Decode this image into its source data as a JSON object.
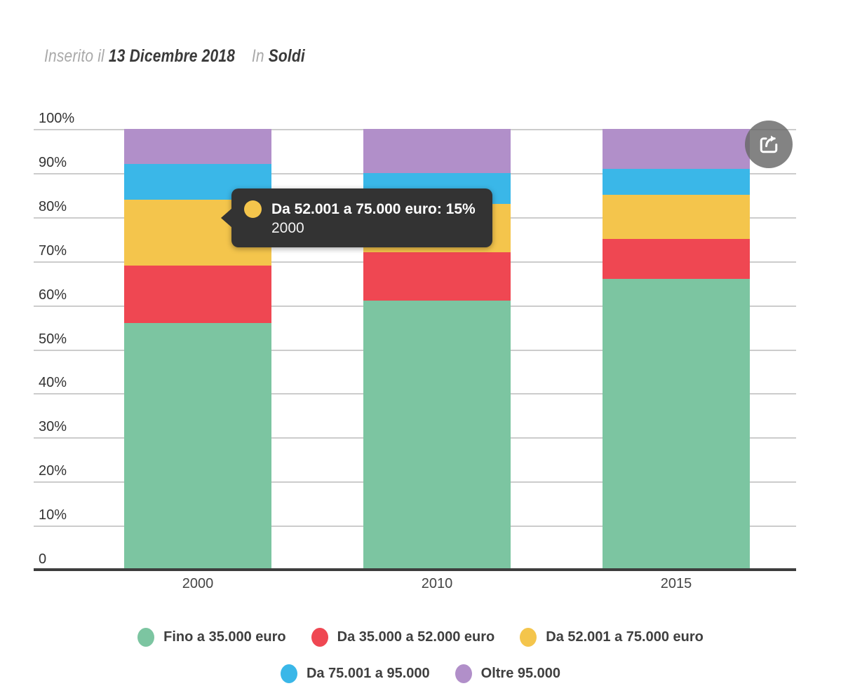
{
  "header": {
    "prefix": "Inserito il",
    "date": "13 Dicembre 2018",
    "in_label": "In",
    "category": "Soldi"
  },
  "chart_data": {
    "type": "bar",
    "stacked": true,
    "percent_stacked": true,
    "title": "",
    "xlabel": "",
    "ylabel": "",
    "categories": [
      "2000",
      "2010",
      "2015"
    ],
    "series": [
      {
        "name": "Fino a 35.000 euro",
        "color": "#7cc5a1",
        "values": [
          56,
          61,
          66
        ]
      },
      {
        "name": "Da 35.000 a 52.000 euro",
        "color": "#ef4752",
        "values": [
          13,
          11,
          9
        ]
      },
      {
        "name": "Da 52.001 a 75.000 euro",
        "color": "#f4c54c",
        "values": [
          15,
          11,
          10
        ]
      },
      {
        "name": "Da 75.001 a 95.000",
        "color": "#3ab7e8",
        "values": [
          8,
          7,
          6
        ]
      },
      {
        "name": "Oltre 95.000",
        "color": "#b18fc9",
        "values": [
          8,
          10,
          9
        ]
      }
    ],
    "ylim": [
      0,
      100
    ],
    "yticks": [
      "100%",
      "90%",
      "80%",
      "70%",
      "60%",
      "50%",
      "40%",
      "30%",
      "20%",
      "10%",
      "0"
    ],
    "grid": true,
    "legend_position": "bottom",
    "legend_rows": [
      [
        0,
        1,
        2
      ],
      [
        3,
        4
      ]
    ]
  },
  "tooltip": {
    "title": "Da 52.001 a 75.000 euro: 15%",
    "subtitle": "2000",
    "dot_color": "#f4c54c"
  },
  "colors": {
    "gridline": "#cccccc",
    "axis": "#3d3d3d",
    "tooltip_bg": "#333333",
    "share_bg": "#686868"
  }
}
